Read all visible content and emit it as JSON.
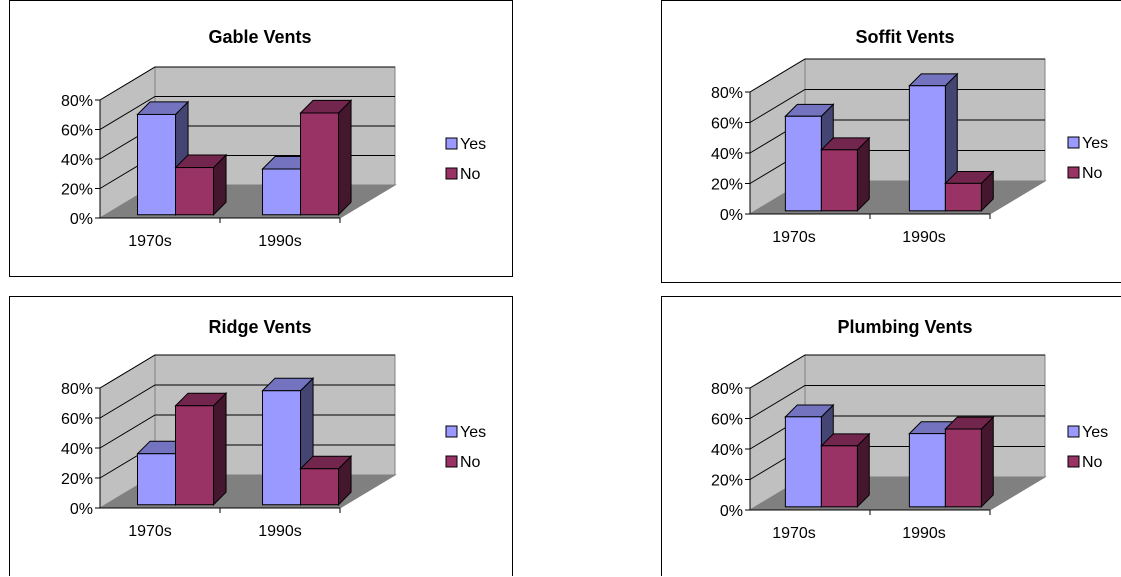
{
  "chart_data": [
    {
      "type": "bar",
      "title": "Gable Vents",
      "categories": [
        "1970s",
        "1990s"
      ],
      "series": [
        {
          "name": "Yes",
          "values": [
            68,
            31
          ]
        },
        {
          "name": "No",
          "values": [
            32,
            69
          ]
        }
      ],
      "ylim": [
        0,
        80
      ],
      "yticks": [
        "0%",
        "20%",
        "40%",
        "60%",
        "80%"
      ],
      "legend": "right",
      "grid": true,
      "colors": {
        "Yes": "#9999ff",
        "No": "#993366"
      }
    },
    {
      "type": "bar",
      "title": "Soffit Vents",
      "categories": [
        "1970s",
        "1990s"
      ],
      "series": [
        {
          "name": "Yes",
          "values": [
            62,
            82
          ]
        },
        {
          "name": "No",
          "values": [
            40,
            18
          ]
        }
      ],
      "ylim": [
        0,
        80
      ],
      "yticks": [
        "0%",
        "20%",
        "40%",
        "60%",
        "80%"
      ],
      "legend": "right",
      "grid": true,
      "colors": {
        "Yes": "#9999ff",
        "No": "#993366"
      }
    },
    {
      "type": "bar",
      "title": "Ridge Vents",
      "categories": [
        "1970s",
        "1990s"
      ],
      "series": [
        {
          "name": "Yes",
          "values": [
            34,
            76
          ]
        },
        {
          "name": "No",
          "values": [
            66,
            24
          ]
        }
      ],
      "ylim": [
        0,
        80
      ],
      "yticks": [
        "0%",
        "20%",
        "40%",
        "60%",
        "80%"
      ],
      "legend": "right",
      "grid": true,
      "colors": {
        "Yes": "#9999ff",
        "No": "#993366"
      }
    },
    {
      "type": "bar",
      "title": "Plumbing Vents",
      "categories": [
        "1970s",
        "1990s"
      ],
      "series": [
        {
          "name": "Yes",
          "values": [
            59,
            48
          ]
        },
        {
          "name": "No",
          "values": [
            40,
            51
          ]
        }
      ],
      "ylim": [
        0,
        80
      ],
      "yticks": [
        "0%",
        "20%",
        "40%",
        "60%",
        "80%"
      ],
      "legend": "right",
      "grid": true,
      "colors": {
        "Yes": "#9999ff",
        "No": "#993366"
      }
    }
  ]
}
